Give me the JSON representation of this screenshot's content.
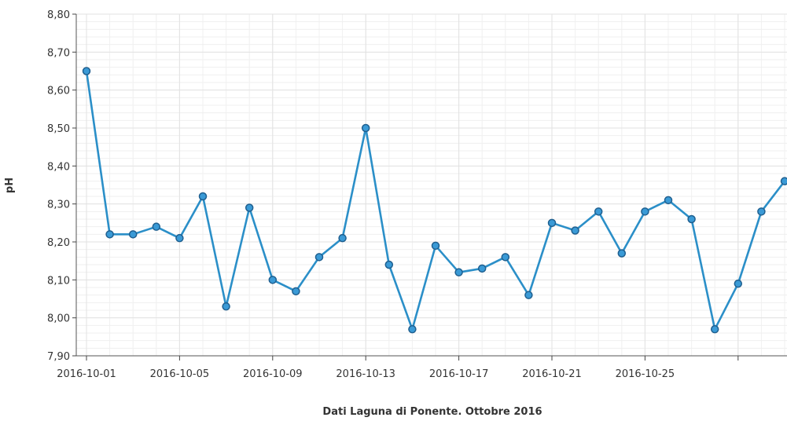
{
  "chart_data": {
    "type": "line",
    "title": "",
    "xlabel": "Dati Laguna di Ponente. Ottobre 2016",
    "ylabel": "pH",
    "ylim": [
      7.9,
      8.8
    ],
    "y_ticks": [
      "7,90",
      "8,00",
      "8,10",
      "8,20",
      "8,30",
      "8,40",
      "8,50",
      "8,60",
      "8,70",
      "8,80"
    ],
    "y_tick_values": [
      7.9,
      8.0,
      8.1,
      8.2,
      8.3,
      8.4,
      8.5,
      8.6,
      8.7,
      8.8
    ],
    "x_ticks": [
      "2016-10-01",
      "2016-10-05",
      "2016-10-09",
      "2016-10-13",
      "2016-10-17",
      "2016-10-21",
      "2016-10-25",
      ""
    ],
    "grid": true,
    "colors": {
      "line": "#2b8fc8",
      "marker_fill": "#3a9ad6",
      "marker_edge": "#1f5f8f",
      "grid": "#e2e2e2"
    },
    "series": [
      {
        "x": [
          "2016-10-01",
          "2016-10-02",
          "2016-10-03",
          "2016-10-04",
          "2016-10-05",
          "2016-10-06",
          "2016-10-07",
          "2016-10-08",
          "2016-10-09",
          "2016-10-10",
          "2016-10-11",
          "2016-10-12",
          "2016-10-13",
          "2016-10-14",
          "2016-10-15",
          "2016-10-16",
          "2016-10-17",
          "2016-10-18",
          "2016-10-19",
          "2016-10-20",
          "2016-10-21",
          "2016-10-22",
          "2016-10-23",
          "2016-10-24",
          "2016-10-25",
          "2016-10-26",
          "2016-10-27",
          "2016-10-28",
          "2016-10-29",
          "2016-10-30",
          "2016-10-31"
        ],
        "values": [
          8.65,
          8.22,
          8.22,
          8.24,
          8.21,
          8.32,
          8.03,
          8.29,
          8.1,
          8.07,
          8.16,
          8.21,
          8.5,
          8.14,
          7.97,
          8.19,
          8.12,
          8.13,
          8.16,
          8.06,
          8.25,
          8.23,
          8.28,
          8.17,
          8.28,
          8.31,
          8.26,
          7.97,
          8.09,
          8.28,
          8.36
        ]
      }
    ]
  }
}
